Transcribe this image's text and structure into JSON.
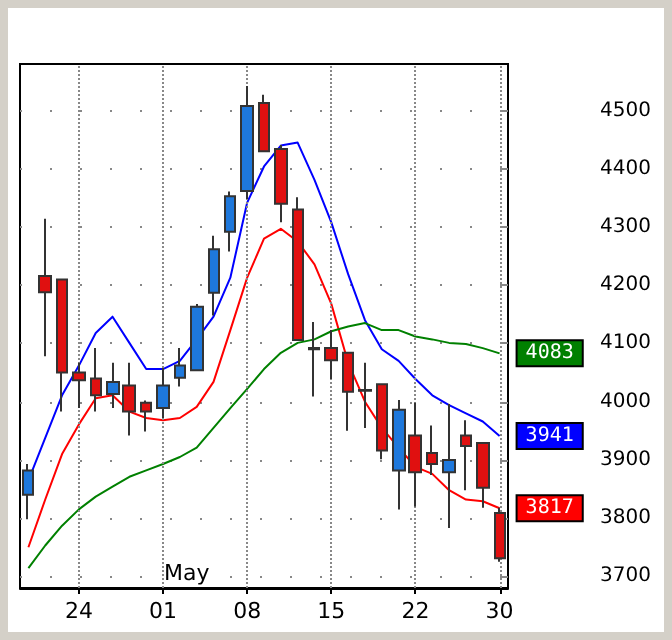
{
  "chart_data": {
    "type": "candlestick",
    "categories": [
      null,
      null,
      null,
      "24",
      null,
      null,
      null,
      null,
      "01",
      null,
      null,
      null,
      null,
      "08",
      null,
      null,
      null,
      null,
      "15",
      null,
      null,
      null,
      null,
      "22",
      null,
      null,
      null,
      null,
      "30"
    ],
    "ohlc": [
      [
        3840,
        3893,
        3798,
        3882
      ],
      [
        4216,
        4314,
        4078,
        4188
      ],
      [
        4210,
        4210,
        3983,
        4050
      ],
      [
        4050,
        4067,
        3989,
        4037
      ],
      [
        4040,
        4092,
        3983,
        4011
      ],
      [
        4013,
        4067,
        3989,
        4034
      ],
      [
        4028,
        4067,
        3942,
        3983
      ],
      [
        3998,
        4002,
        3949,
        3983
      ],
      [
        3989,
        4058,
        3972,
        4028
      ],
      [
        4041,
        4092,
        4026,
        4062
      ],
      [
        4054,
        4168,
        4054,
        4163
      ],
      [
        4187,
        4285,
        4148,
        4262
      ],
      [
        4292,
        4361,
        4258,
        4353
      ],
      [
        4362,
        4542,
        4348,
        4508
      ],
      [
        4513,
        4527,
        4430,
        4430
      ],
      [
        4434,
        4441,
        4308,
        4340
      ],
      [
        4330,
        4351,
        4106,
        4106
      ],
      [
        4092,
        4137,
        4009,
        4090
      ],
      [
        4092,
        4123,
        4039,
        4071
      ],
      [
        4084,
        4084,
        3950,
        4017
      ],
      [
        4020,
        4067,
        3955,
        4019
      ],
      [
        4030,
        4030,
        3901,
        3916
      ],
      [
        3882,
        4003,
        3815,
        3986
      ],
      [
        3942,
        3998,
        3820,
        3879
      ],
      [
        3912,
        3959,
        3874,
        3893
      ],
      [
        3879,
        3996,
        3783,
        3900
      ],
      [
        3942,
        3968,
        3848,
        3924
      ],
      [
        3929,
        3929,
        3818,
        3852
      ],
      [
        3809,
        3818,
        3725,
        3731
      ]
    ],
    "colors": [
      "#1e78dc",
      "#e01010",
      "#e01010",
      "#e01010",
      "#e01010",
      "#1e78dc",
      "#e01010",
      "#e01010",
      "#1e78dc",
      "#1e78dc",
      "#1e78dc",
      "#1e78dc",
      "#1e78dc",
      "#1e78dc",
      "#e01010",
      "#e01010",
      "#e01010",
      "#e01010",
      "#e01010",
      "#e01010",
      "#e01010",
      "#e01010",
      "#1e78dc",
      "#e01010",
      "#e01010",
      "#1e78dc",
      "#e01010",
      "#e01010",
      "#e01010"
    ],
    "series": [
      {
        "type": "line",
        "color": "#0000ff",
        "values": [
          3865,
          3938,
          4011,
          4062,
          4118,
          4146,
          4101,
          4056,
          4056,
          4070,
          4107,
          4146,
          4213,
          4342,
          4404,
          4440,
          4445,
          4381,
          4308,
          4219,
          4140,
          4090,
          4070,
          4039,
          4011,
          3994,
          3980,
          3966,
          3941
        ],
        "value_labels": [
          null,
          null,
          null,
          null,
          null,
          null,
          null,
          null,
          null,
          null,
          null,
          null,
          null,
          null,
          null,
          null,
          null,
          null,
          null,
          null,
          null,
          null,
          null,
          null,
          null,
          null,
          null,
          null,
          "3941"
        ]
      },
      {
        "type": "line",
        "color": "#ff0000",
        "values": [
          3750,
          3832,
          3910,
          3961,
          4006,
          4011,
          3983,
          3972,
          3968,
          3972,
          3991,
          4034,
          4123,
          4213,
          4280,
          4297,
          4275,
          4236,
          4168,
          4067,
          4000,
          3955,
          3921,
          3888,
          3876,
          3848,
          3832,
          3829,
          3817
        ],
        "value_labels": [
          null,
          null,
          null,
          null,
          null,
          null,
          null,
          null,
          null,
          null,
          null,
          null,
          null,
          null,
          null,
          null,
          null,
          null,
          null,
          null,
          null,
          null,
          null,
          null,
          null,
          null,
          null,
          null,
          "3817"
        ]
      },
      {
        "type": "line",
        "color": "#008000",
        "values": [
          3714,
          3753,
          3787,
          3815,
          3837,
          3854,
          3871,
          3882,
          3893,
          3905,
          3921,
          3955,
          3989,
          4022,
          4056,
          4084,
          4101,
          4107,
          4121,
          4129,
          4135,
          4123,
          4123,
          4112,
          4107,
          4101,
          4099,
          4092,
          4083
        ],
        "value_labels": [
          null,
          null,
          null,
          null,
          null,
          null,
          null,
          null,
          null,
          null,
          null,
          null,
          null,
          null,
          null,
          null,
          null,
          null,
          null,
          null,
          null,
          null,
          null,
          null,
          null,
          null,
          null,
          null,
          "4083"
        ]
      }
    ],
    "ylim": [
      3680,
      4580
    ],
    "yticks": [
      3700,
      3800,
      3900,
      4000,
      4100,
      4200,
      4300,
      4400,
      4500
    ],
    "grid": true,
    "marker": "none",
    "line_style": "solid",
    "annotations": [
      "May"
    ]
  }
}
